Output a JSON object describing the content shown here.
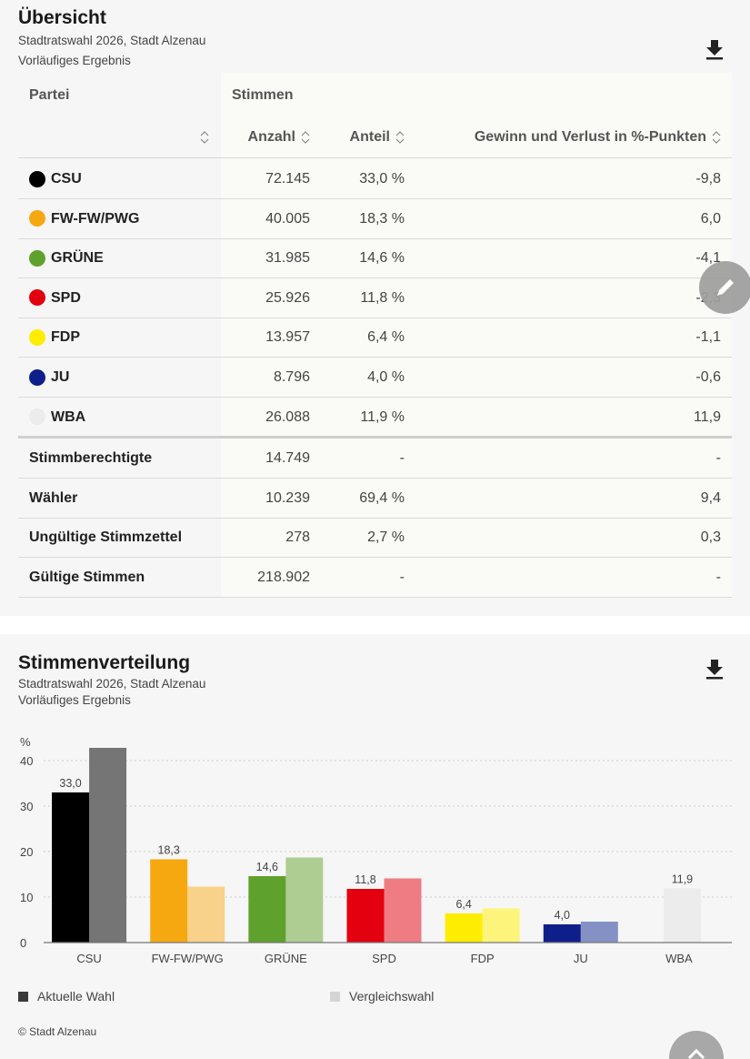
{
  "overview": {
    "title": "Übersicht",
    "subtitle": "Stadtratswahl 2026, Stadt Alzenau",
    "status": "Vorläufiges Ergebnis",
    "download_icon": "download-icon",
    "table": {
      "headers": {
        "party": "Partei",
        "votes_group": "Stimmen",
        "count": "Anzahl",
        "share": "Anteil",
        "change": "Gewinn und Verlust in %-Punkten"
      },
      "parties": [
        {
          "name": "CSU",
          "color": "#000000",
          "count": "72.145",
          "share": "33,0 %",
          "change": "-9,8"
        },
        {
          "name": "FW-FW/PWG",
          "color": "#f6a811",
          "count": "40.005",
          "share": "18,3 %",
          "change": "6,0"
        },
        {
          "name": "GRÜNE",
          "color": "#5fa12d",
          "count": "31.985",
          "share": "14,6 %",
          "change": "-4,1"
        },
        {
          "name": "SPD",
          "color": "#e3000f",
          "count": "25.926",
          "share": "11,8 %",
          "change": "-2,3"
        },
        {
          "name": "FDP",
          "color": "#ffed00",
          "count": "13.957",
          "share": "6,4 %",
          "change": "-1,1"
        },
        {
          "name": "JU",
          "color": "#0f1f8a",
          "count": "8.796",
          "share": "4,0 %",
          "change": "-0,6"
        },
        {
          "name": "WBA",
          "color": "#ececec",
          "count": "26.088",
          "share": "11,9 %",
          "change": "11,9"
        }
      ],
      "summary": [
        {
          "label": "Stimmberechtigte",
          "count": "14.749",
          "share": "-",
          "change": "-"
        },
        {
          "label": "Wähler",
          "count": "10.239",
          "share": "69,4 %",
          "change": "9,4"
        },
        {
          "label": "Ungültige Stimmzettel",
          "count": "278",
          "share": "2,7 %",
          "change": "0,3"
        },
        {
          "label": "Gültige Stimmen",
          "count": "218.902",
          "share": "-",
          "change": "-"
        }
      ]
    }
  },
  "distribution": {
    "title": "Stimmenverteilung",
    "subtitle": "Stadtratswahl 2026, Stadt Alzenau",
    "status": "Vorläufiges Ergebnis",
    "download_icon": "download-icon",
    "legend": [
      {
        "label": "Aktuelle Wahl",
        "color": "#3a3a3a"
      },
      {
        "label": "Vergleichswahl",
        "color": "#d4d4d4"
      }
    ],
    "copyright": "© Stadt Alzenau"
  },
  "chart_data": {
    "type": "bar",
    "title": "Stimmenverteilung",
    "ylabel": "%",
    "xlabel": "",
    "ylim": [
      0,
      44
    ],
    "yticks": [
      0,
      10,
      20,
      30,
      40
    ],
    "grid": true,
    "legend_position": "bottom",
    "categories": [
      "CSU",
      "FW-FW/PWG",
      "GRÜNE",
      "SPD",
      "FDP",
      "JU",
      "WBA"
    ],
    "series": [
      {
        "name": "Aktuelle Wahl",
        "values": [
          33.0,
          18.3,
          14.6,
          11.8,
          6.4,
          4.0,
          11.9
        ],
        "labels": [
          "33,0",
          "18,3",
          "14,6",
          "11,8",
          "6,4",
          "4,0",
          "11,9"
        ],
        "colors": [
          "#000000",
          "#f6a811",
          "#5fa12d",
          "#e3000f",
          "#ffed00",
          "#0f1f8a",
          "#ececec"
        ]
      },
      {
        "name": "Vergleichswahl",
        "values": [
          42.8,
          12.3,
          18.7,
          14.1,
          7.5,
          4.6,
          null
        ],
        "colors": [
          "#757575",
          "#f8d28a",
          "#aecd93",
          "#ef7c83",
          "#fdf47c",
          "#8590c5",
          "#ececec"
        ]
      }
    ]
  },
  "fabs": {
    "edit_icon": "pencil-icon",
    "scroll_top_icon": "chevron-up-icon"
  }
}
